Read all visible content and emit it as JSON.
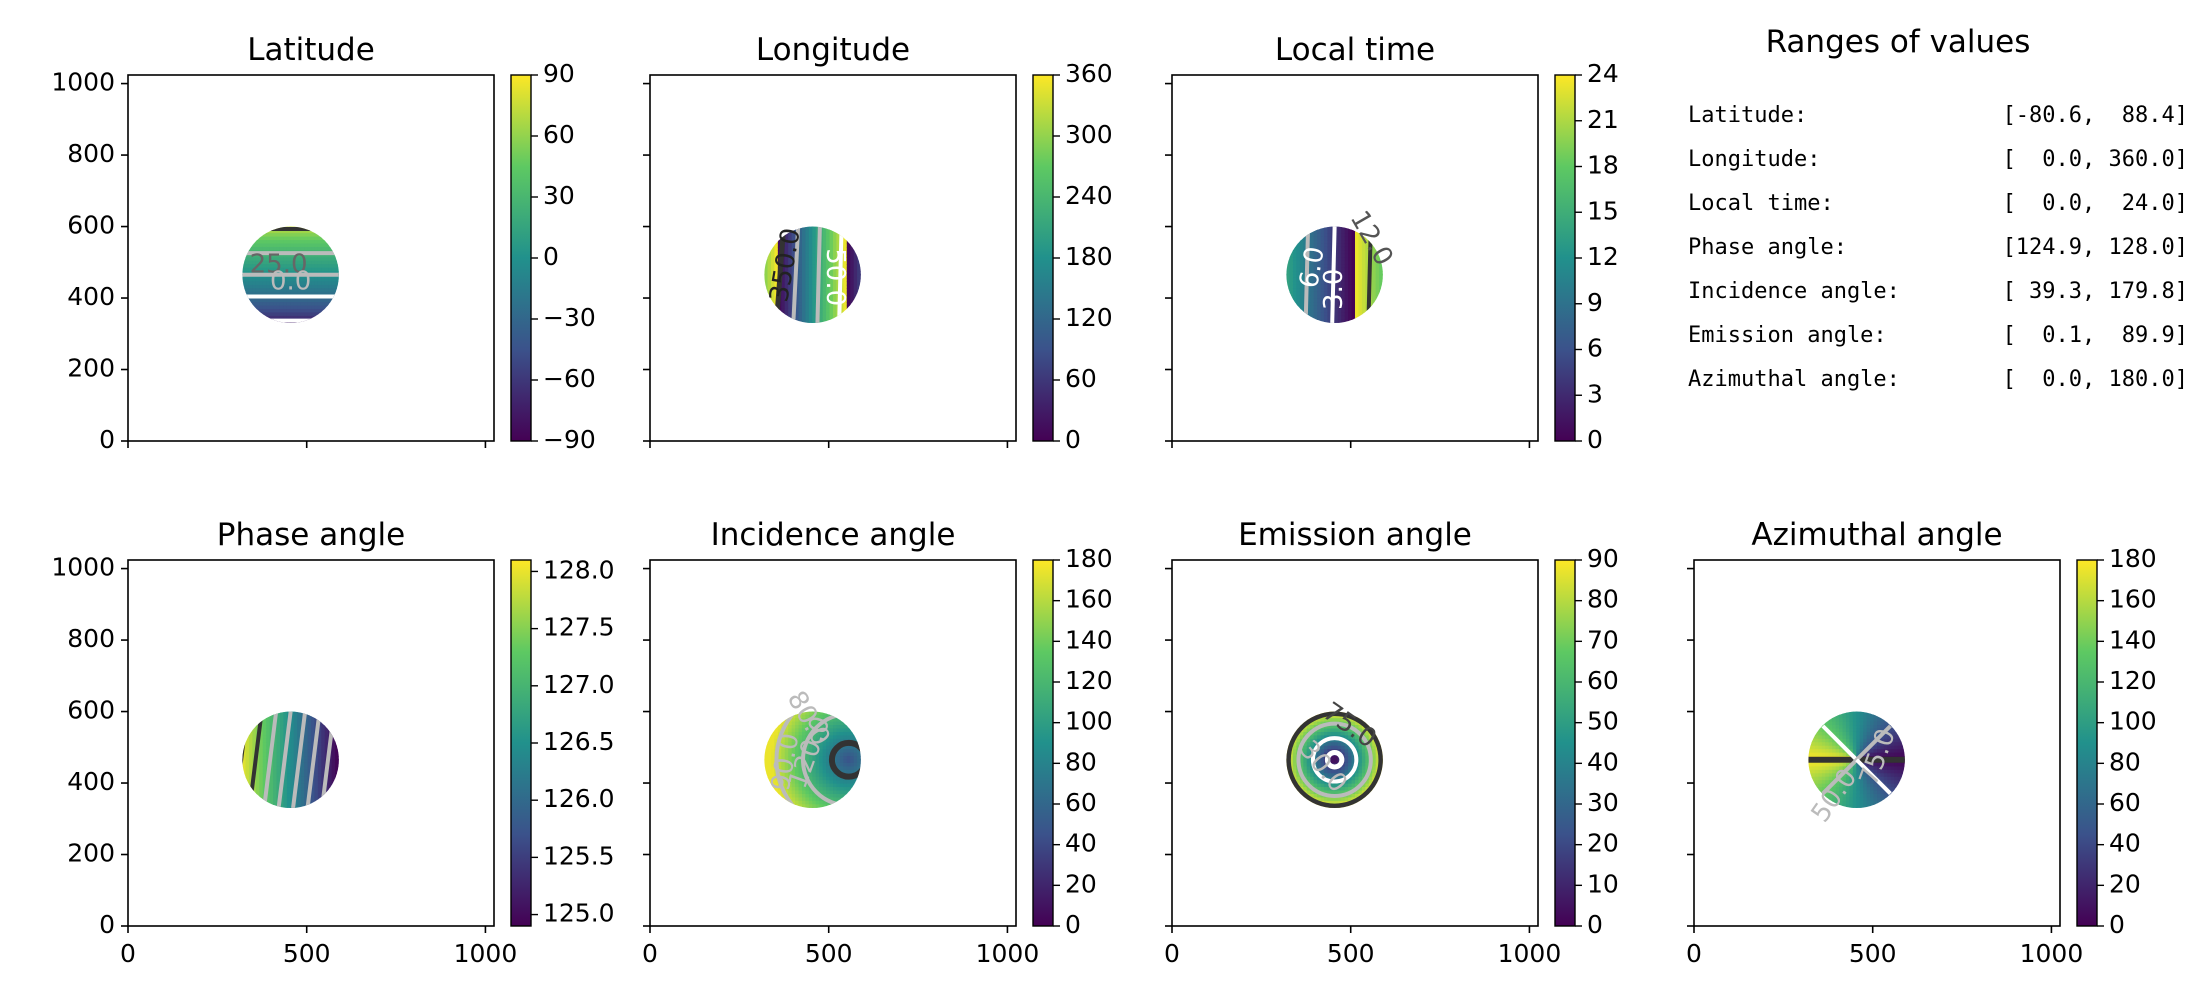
{
  "ranges_panel": {
    "title": "Ranges of values",
    "rows": [
      {
        "label": "Latitude:",
        "value": "[-80.6,  88.4]"
      },
      {
        "label": "Longitude:",
        "value": "[  0.0, 360.0]"
      },
      {
        "label": "Local time:",
        "value": "[  0.0,  24.0]"
      },
      {
        "label": "Phase angle:",
        "value": "[124.9, 128.0]"
      },
      {
        "label": "Incidence angle:",
        "value": "[ 39.3, 179.8]"
      },
      {
        "label": "Emission angle:",
        "value": "[  0.1,  89.9]"
      },
      {
        "label": "Azimuthal angle:",
        "value": "[  0.0, 180.0]"
      }
    ]
  },
  "colors": {
    "viridis": [
      "#440154",
      "#3b528b",
      "#21918c",
      "#5ec962",
      "#fde725"
    ],
    "contour_dark": "#333333",
    "contour_light": "#bbbbbb",
    "contour_white": "#ffffff"
  },
  "chart_data": [
    {
      "type": "heatmap",
      "title": "Latitude",
      "xlim": [
        0,
        1024
      ],
      "ylim": [
        0,
        1024
      ],
      "xticks": [
        "0",
        "500",
        "1000"
      ],
      "yticks": [
        "0",
        "200",
        "400",
        "600",
        "800",
        "1000"
      ],
      "show_xticklabels": false,
      "show_yticklabels": true,
      "disk": {
        "cx": 455,
        "cy": 465,
        "r": 135
      },
      "field": "lat",
      "vmin": -90,
      "vmax": 90,
      "colorbar_ticks": [
        "90",
        "60",
        "30",
        "0",
        "−30",
        "−60",
        "−90"
      ],
      "contour_labels": [
        "25.0",
        "0.0"
      ]
    },
    {
      "type": "heatmap",
      "title": "Longitude",
      "xlim": [
        0,
        1024
      ],
      "ylim": [
        0,
        1024
      ],
      "xticks": [
        "0",
        "500",
        "1000"
      ],
      "yticks": [
        "0",
        "200",
        "400",
        "600",
        "800",
        "1000"
      ],
      "show_xticklabels": false,
      "show_yticklabels": false,
      "disk": {
        "cx": 455,
        "cy": 465,
        "r": 135
      },
      "field": "lon",
      "vmin": 0,
      "vmax": 360,
      "colorbar_ticks": [
        "360",
        "300",
        "240",
        "180",
        "120",
        "60",
        "0"
      ],
      "contour_labels": [
        "350.0",
        "50.0"
      ]
    },
    {
      "type": "heatmap",
      "title": "Local time",
      "xlim": [
        0,
        1024
      ],
      "ylim": [
        0,
        1024
      ],
      "xticks": [
        "0",
        "500",
        "1000"
      ],
      "yticks": [
        "0",
        "200",
        "400",
        "600",
        "800",
        "1000"
      ],
      "show_xticklabels": false,
      "show_yticklabels": false,
      "disk": {
        "cx": 455,
        "cy": 465,
        "r": 135
      },
      "field": "lt",
      "vmin": 0,
      "vmax": 24,
      "colorbar_ticks": [
        "24",
        "21",
        "18",
        "15",
        "12",
        "9",
        "6",
        "3",
        "0"
      ],
      "contour_labels": [
        "6.0",
        "3.0",
        "12.0"
      ]
    },
    {
      "type": "heatmap",
      "title": "Phase angle",
      "xlim": [
        0,
        1024
      ],
      "ylim": [
        0,
        1024
      ],
      "xticks": [
        "0",
        "500",
        "1000"
      ],
      "yticks": [
        "0",
        "200",
        "400",
        "600",
        "800",
        "1000"
      ],
      "show_xticklabels": true,
      "show_yticklabels": true,
      "disk": {
        "cx": 455,
        "cy": 465,
        "r": 135
      },
      "field": "phase",
      "vmin": 124.9,
      "vmax": 128.1,
      "colorbar_ticks": [
        "128.0",
        "127.5",
        "127.0",
        "126.5",
        "126.0",
        "125.5",
        "125.0"
      ],
      "contour_labels": []
    },
    {
      "type": "heatmap",
      "title": "Incidence angle",
      "xlim": [
        0,
        1024
      ],
      "ylim": [
        0,
        1024
      ],
      "xticks": [
        "0",
        "500",
        "1000"
      ],
      "yticks": [
        "0",
        "200",
        "400",
        "600",
        "800",
        "1000"
      ],
      "show_xticklabels": true,
      "show_yticklabels": false,
      "disk": {
        "cx": 455,
        "cy": 465,
        "r": 135
      },
      "field": "inc",
      "vmin": 0,
      "vmax": 180,
      "colorbar_ticks": [
        "180",
        "160",
        "140",
        "120",
        "100",
        "80",
        "60",
        "40",
        "20",
        "0"
      ],
      "contour_labels": [
        "90.0",
        "120.0",
        "80.0"
      ]
    },
    {
      "type": "heatmap",
      "title": "Emission angle",
      "xlim": [
        0,
        1024
      ],
      "ylim": [
        0,
        1024
      ],
      "xticks": [
        "0",
        "500",
        "1000"
      ],
      "yticks": [
        "0",
        "200",
        "400",
        "600",
        "800",
        "1000"
      ],
      "show_xticklabels": true,
      "show_yticklabels": false,
      "disk": {
        "cx": 455,
        "cy": 465,
        "r": 135
      },
      "field": "emi",
      "vmin": 0,
      "vmax": 90,
      "colorbar_ticks": [
        "90",
        "80",
        "70",
        "60",
        "50",
        "40",
        "30",
        "20",
        "10",
        "0"
      ],
      "contour_labels": [
        "75.0",
        "30.0"
      ]
    },
    {
      "type": "heatmap",
      "title": "Azimuthal angle",
      "xlim": [
        0,
        1024
      ],
      "ylim": [
        0,
        1024
      ],
      "xticks": [
        "0",
        "500",
        "1000"
      ],
      "yticks": [
        "0",
        "200",
        "400",
        "600",
        "800",
        "1000"
      ],
      "show_xticklabels": true,
      "show_yticklabels": false,
      "disk": {
        "cx": 455,
        "cy": 465,
        "r": 135
      },
      "field": "azi",
      "vmin": 0,
      "vmax": 180,
      "colorbar_ticks": [
        "180",
        "160",
        "140",
        "120",
        "100",
        "80",
        "60",
        "40",
        "20",
        "0"
      ],
      "contour_labels": [
        "50.0",
        "75.0"
      ]
    }
  ]
}
